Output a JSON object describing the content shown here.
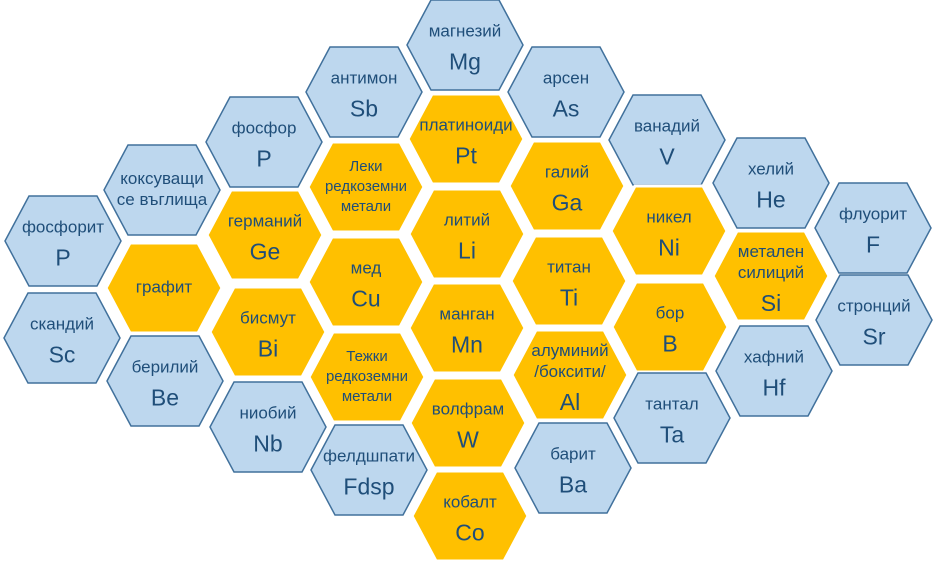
{
  "cells": [
    {
      "name": [
        "фосфорит"
      ],
      "symbol": "P",
      "fill": "#bdd7ee"
    },
    {
      "name": [
        "скандий"
      ],
      "symbol": "Sc",
      "fill": "#bdd7ee"
    },
    {
      "name": [
        "коксуващи",
        "се въглища"
      ],
      "fill": "#bdd7ee"
    },
    {
      "name": [
        "графит"
      ],
      "fill": "#ffc000"
    },
    {
      "name": [
        "берилий"
      ],
      "symbol": "Be",
      "fill": "#bdd7ee"
    },
    {
      "name": [
        "фосфор"
      ],
      "symbol": "P",
      "fill": "#bdd7ee"
    },
    {
      "name": [
        "германий"
      ],
      "symbol": "Ge",
      "fill": "#ffc000"
    },
    {
      "name": [
        "бисмут"
      ],
      "symbol": "Bi",
      "fill": "#ffc000"
    },
    {
      "name": [
        "ниобий"
      ],
      "symbol": "Nb",
      "fill": "#bdd7ee"
    },
    {
      "name": [
        "антимон"
      ],
      "symbol": "Sb",
      "fill": "#bdd7ee"
    },
    {
      "name": [
        "Леки",
        "редкоземни",
        "метали"
      ],
      "fill": "#ffc000"
    },
    {
      "name": [
        "мед"
      ],
      "symbol": "Cu",
      "fill": "#ffc000"
    },
    {
      "name": [
        "Тежки",
        "редкоземни",
        "метали"
      ],
      "fill": "#ffc000"
    },
    {
      "name": [
        "фелдшпати"
      ],
      "symbol": "Fdsp",
      "fill": "#bdd7ee"
    },
    {
      "name": [
        "магнезий"
      ],
      "symbol": "Mg",
      "fill": "#bdd7ee"
    },
    {
      "name": [
        "платиноиди"
      ],
      "symbol": "Pt",
      "fill": "#ffc000"
    },
    {
      "name": [
        "литий"
      ],
      "symbol": "Li",
      "fill": "#ffc000"
    },
    {
      "name": [
        "манган"
      ],
      "symbol": "Mn",
      "fill": "#ffc000"
    },
    {
      "name": [
        "волфрам"
      ],
      "symbol": "W",
      "fill": "#ffc000"
    },
    {
      "name": [
        "кобалт"
      ],
      "symbol": "Co",
      "fill": "#ffc000"
    },
    {
      "name": [
        "арсен"
      ],
      "symbol": "As",
      "fill": "#bdd7ee"
    },
    {
      "name": [
        "галий"
      ],
      "symbol": "Ga",
      "fill": "#ffc000"
    },
    {
      "name": [
        "титан"
      ],
      "symbol": "Ti",
      "fill": "#ffc000"
    },
    {
      "name": [
        "алуминий",
        "/боксити/"
      ],
      "symbol": "Al",
      "fill": "#ffc000"
    },
    {
      "name": [
        "барит"
      ],
      "symbol": "Ba",
      "fill": "#bdd7ee"
    },
    {
      "name": [
        "ванадий"
      ],
      "symbol": "V",
      "fill": "#bdd7ee"
    },
    {
      "name": [
        "никел"
      ],
      "symbol": "Ni",
      "fill": "#ffc000"
    },
    {
      "name": [
        "бор"
      ],
      "symbol": "B",
      "fill": "#ffc000"
    },
    {
      "name": [
        "тантал"
      ],
      "symbol": "Ta",
      "fill": "#bdd7ee"
    },
    {
      "name": [
        "хелий"
      ],
      "symbol": "He",
      "fill": "#bdd7ee"
    },
    {
      "name": [
        "метален",
        "силиций"
      ],
      "symbol": "Si",
      "fill": "#ffc000"
    },
    {
      "name": [
        "хафний"
      ],
      "symbol": "Hf",
      "fill": "#bdd7ee"
    },
    {
      "name": [
        "флуорит"
      ],
      "symbol": "F",
      "fill": "#bdd7ee"
    },
    {
      "name": [
        "стронций"
      ],
      "symbol": "Sr",
      "fill": "#bdd7ee"
    }
  ]
}
